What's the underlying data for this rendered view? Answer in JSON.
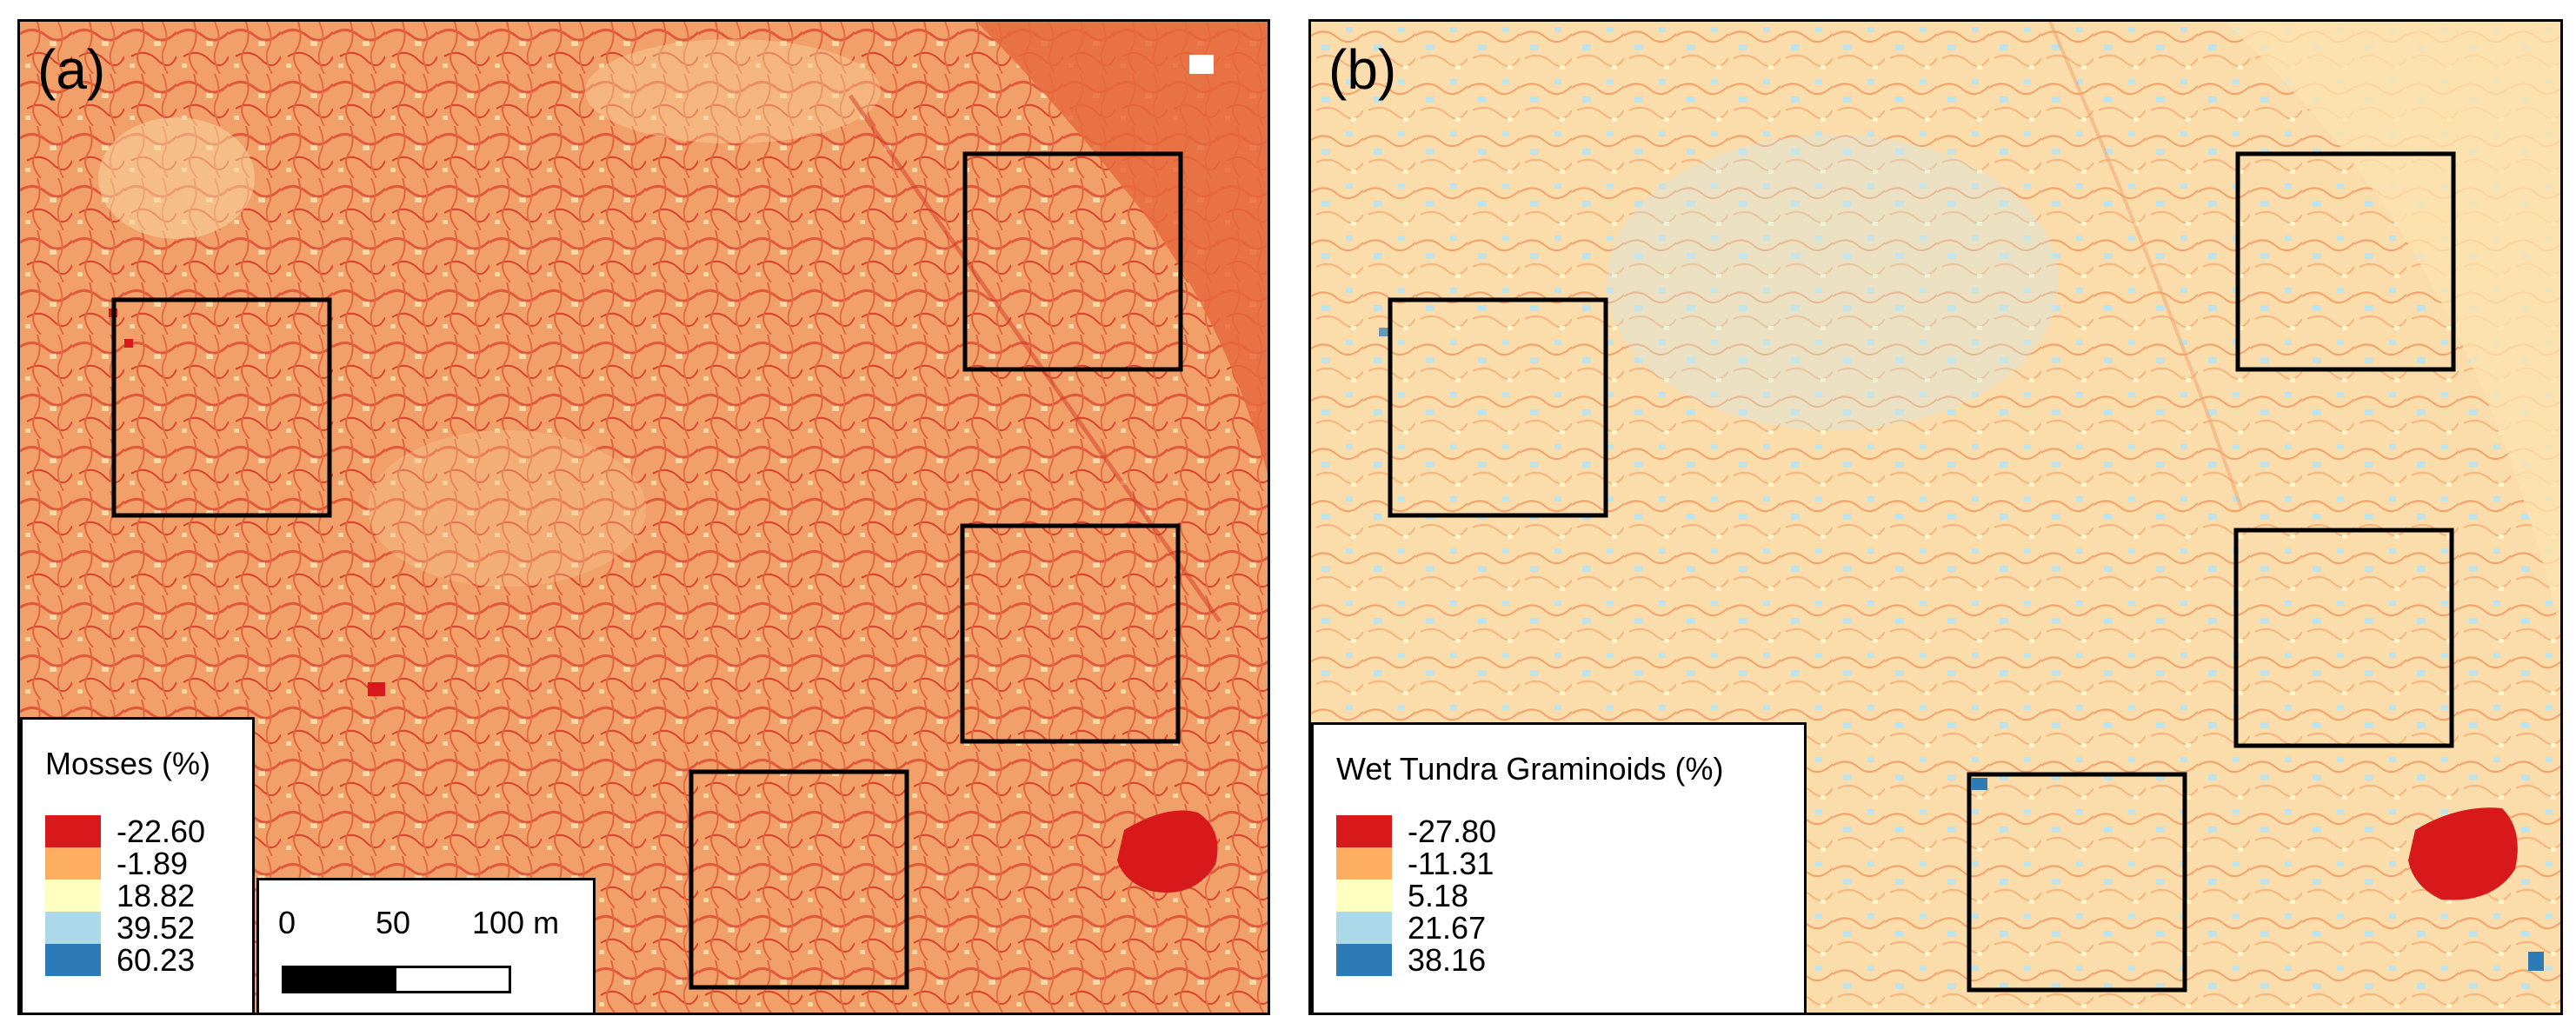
{
  "panels": [
    {
      "label": "(a)",
      "legend": {
        "title": "Mosses (%)",
        "entries": [
          {
            "value": "-22.60",
            "color": "#d7191c"
          },
          {
            "value": "-1.89",
            "color": "#fdae61"
          },
          {
            "value": "18.82",
            "color": "#ffffbf"
          },
          {
            "value": "39.52",
            "color": "#abd9e9"
          },
          {
            "value": "60.23",
            "color": "#2c7bb6"
          }
        ]
      }
    },
    {
      "label": "(b)",
      "legend": {
        "title": "Wet Tundra Graminoids (%)",
        "entries": [
          {
            "value": "-27.80",
            "color": "#d7191c"
          },
          {
            "value": "-11.31",
            "color": "#fdae61"
          },
          {
            "value": "5.18",
            "color": "#ffffbf"
          },
          {
            "value": "21.67",
            "color": "#abd9e9"
          },
          {
            "value": "38.16",
            "color": "#2c7bb6"
          }
        ]
      }
    }
  ],
  "scalebar": {
    "ticks": [
      "0",
      "50",
      "100 m"
    ]
  }
}
